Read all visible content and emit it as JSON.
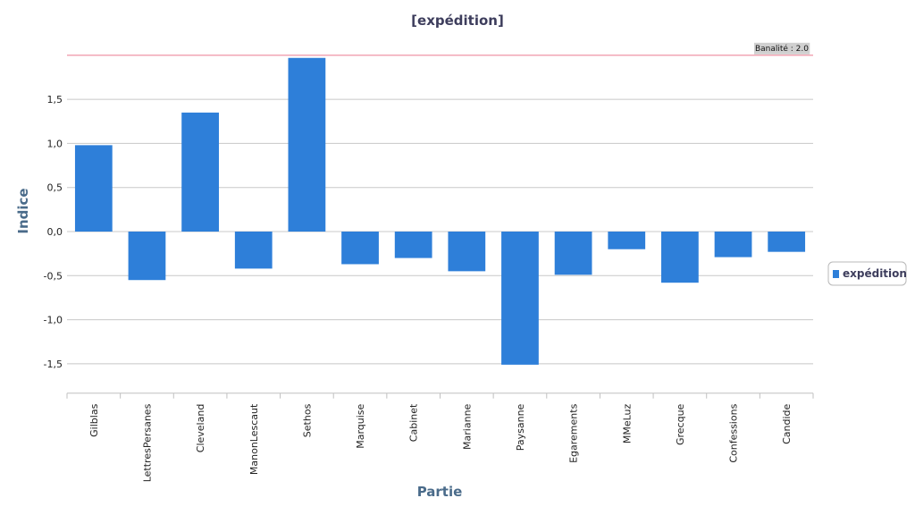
{
  "chart_data": {
    "type": "bar",
    "title": "[expédition]",
    "xlabel": "Partie",
    "ylabel": "Indice",
    "categories": [
      "Gilblas",
      "LettresPersanes",
      "Cleveland",
      "ManonLescaut",
      "Sethos",
      "Marquise",
      "Cabinet",
      "Marianne",
      "Paysanne",
      "Egarements",
      "MMeLuz",
      "Grecque",
      "Confessions",
      "Candide"
    ],
    "series": [
      {
        "name": "expédition",
        "values": [
          0.98,
          -0.55,
          1.35,
          -0.42,
          1.97,
          -0.37,
          -0.3,
          -0.45,
          -1.51,
          -0.49,
          -0.2,
          -0.58,
          -0.29,
          -0.23
        ],
        "color": "#2e7fd9"
      }
    ],
    "ylim": [
      -1.65,
      2.05
    ],
    "yticks": [
      -1.5,
      -1.0,
      -0.5,
      0.0,
      0.5,
      1.0,
      1.5
    ],
    "ytick_labels": [
      "-1,5",
      "-1,0",
      "-0,5",
      "0,0",
      "0,5",
      "1,0",
      "1,5"
    ],
    "reference_line": {
      "value": 2.0,
      "label": "Banalité : 2.0",
      "color": "#f2a6b4"
    },
    "grid": true,
    "legend_position": "right"
  }
}
